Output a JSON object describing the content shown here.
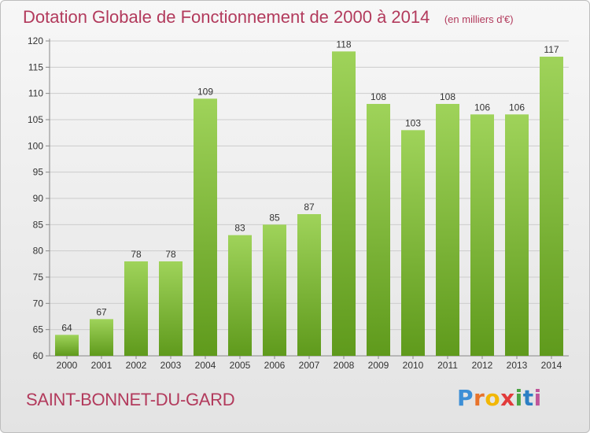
{
  "header": {
    "title": "Dotation Globale de Fonctionnement de 2000 à 2014",
    "unit": "(en milliers d'€)"
  },
  "footer": {
    "commune": "SAINT-BONNET-DU-GARD",
    "logo_letters": [
      "P",
      "r",
      "o",
      "x",
      "i",
      "t",
      "i"
    ]
  },
  "colors": {
    "title": "#b23a5c",
    "bar_top": "#9fd35a",
    "bar_bottom": "#5f9a1c"
  },
  "chart_data": {
    "type": "bar",
    "title": "Dotation Globale de Fonctionnement de 2000 à 2014",
    "subtitle": "(en milliers d'€)",
    "xlabel": "",
    "ylabel": "",
    "categories": [
      "2000",
      "2001",
      "2002",
      "2003",
      "2004",
      "2005",
      "2006",
      "2007",
      "2008",
      "2009",
      "2010",
      "2011",
      "2012",
      "2013",
      "2014"
    ],
    "values": [
      64,
      67,
      78,
      78,
      109,
      83,
      85,
      87,
      118,
      108,
      103,
      108,
      106,
      106,
      117
    ],
    "ylim": [
      60,
      120
    ],
    "yticks": [
      60,
      65,
      70,
      75,
      80,
      85,
      90,
      95,
      100,
      105,
      110,
      115,
      120
    ],
    "grid": true
  }
}
